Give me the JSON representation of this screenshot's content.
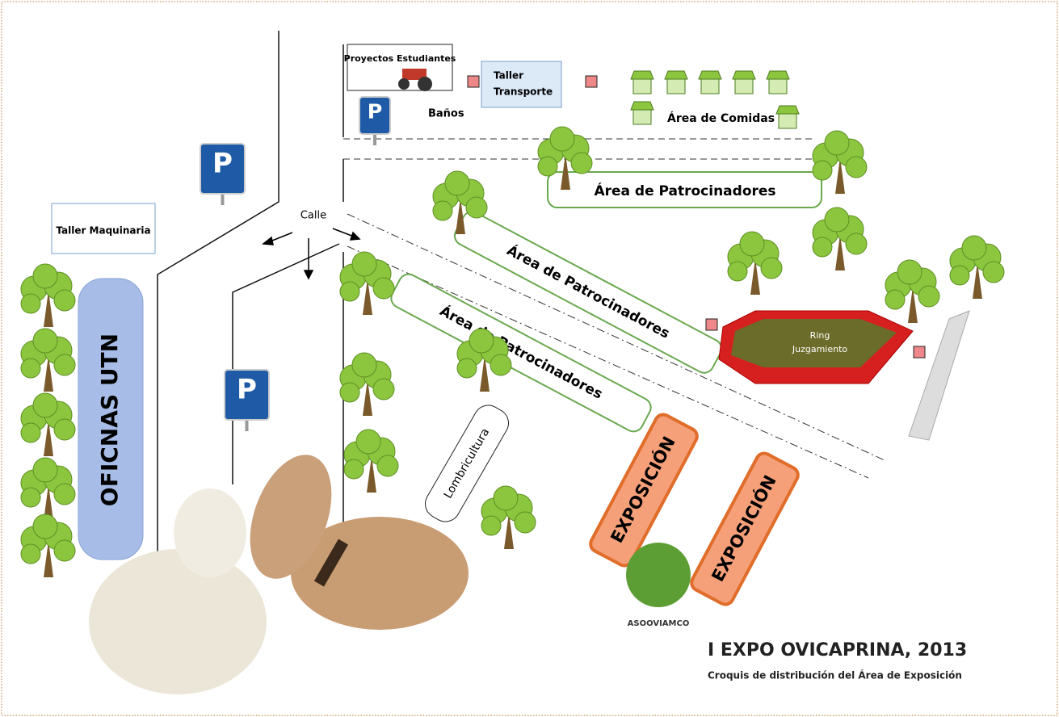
{
  "parking_sign": "P",
  "labels": {
    "proyectos": "Proyectos Estudiantes",
    "taller_transporte": [
      "Taller",
      "Transporte"
    ],
    "banos": "Baños",
    "comidas": "Área de Comidas",
    "patrocinadores": [
      "Área de Patrocinadores",
      "Área de Patrocinadores",
      "Área de Patrocinadores"
    ],
    "calle": "Calle",
    "taller_maquinaria": "Taller Maquinaria",
    "oficinas": "OFICNAS UTN",
    "ring": [
      "Ring",
      "Juzgamiento"
    ],
    "lombricultura": "Lombricultura",
    "exposicion": [
      "EXPOSICIÓN",
      "EXPOSICIÓN"
    ]
  },
  "footer": {
    "logo": "ASOOVIAMCO",
    "title": "I EXPO OVICAPRINA, 2013",
    "subtitle": "Croquis de distribución del Área de Exposición"
  }
}
